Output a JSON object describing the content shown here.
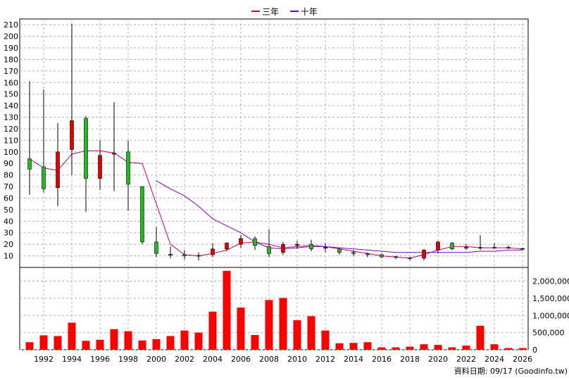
{
  "legend": {
    "ma3_label": "三年",
    "ma10_label": "十年",
    "ma3_color": "#c0006a",
    "ma10_color": "#8000c0"
  },
  "footer": {
    "source_label": "資料日期: 09/17  (Goodinfo.tw)"
  },
  "colors": {
    "up": "#e00000",
    "down": "#22bb22",
    "volume": "#ff0000",
    "grid": "#b0b0b0"
  },
  "chart_data": [
    {
      "type": "candlestick",
      "title": "",
      "xlabel": "",
      "ylabel": "",
      "ylim": [
        0,
        215
      ],
      "xlim": [
        1990.3,
        2026.4
      ],
      "grid": true,
      "legend_position": "top-center",
      "x_ticks": [
        1992,
        1994,
        1996,
        1998,
        2000,
        2002,
        2004,
        2006,
        2008,
        2010,
        2012,
        2014,
        2016,
        2018,
        2020,
        2022,
        2024,
        2026
      ],
      "y_ticks": [
        10,
        20,
        30,
        40,
        50,
        60,
        70,
        80,
        90,
        100,
        110,
        120,
        130,
        140,
        150,
        160,
        170,
        180,
        190,
        200,
        210
      ],
      "candles": [
        {
          "year": 1991,
          "open": 94,
          "close": 85,
          "high": 161,
          "low": 63
        },
        {
          "year": 1992,
          "open": 87,
          "close": 68,
          "high": 154,
          "low": 65
        },
        {
          "year": 1993,
          "open": 69,
          "close": 100,
          "high": 125,
          "low": 53
        },
        {
          "year": 1994,
          "open": 102,
          "close": 127,
          "high": 211,
          "low": 80
        },
        {
          "year": 1995,
          "open": 129,
          "close": 77,
          "high": 131,
          "low": 48
        },
        {
          "year": 1996,
          "open": 77,
          "close": 97,
          "high": 110,
          "low": 67
        },
        {
          "year": 1997,
          "open": 98,
          "close": 99,
          "high": 143,
          "low": 66
        },
        {
          "year": 1998,
          "open": 100,
          "close": 72,
          "high": 110,
          "low": 49
        },
        {
          "year": 1999,
          "open": 70,
          "close": 22,
          "high": 70,
          "low": 20
        },
        {
          "year": 2000,
          "open": 22,
          "close": 12,
          "high": 35,
          "low": 9
        },
        {
          "year": 2001,
          "open": 11,
          "close": 11,
          "high": 18,
          "low": 8
        },
        {
          "year": 2002,
          "open": 11,
          "close": 10,
          "high": 15,
          "low": 7
        },
        {
          "year": 2003,
          "open": 10,
          "close": 10,
          "high": 13,
          "low": 6
        },
        {
          "year": 2004,
          "open": 11,
          "close": 16,
          "high": 21,
          "low": 9
        },
        {
          "year": 2005,
          "open": 16,
          "close": 21,
          "high": 22,
          "low": 14
        },
        {
          "year": 2006,
          "open": 20,
          "close": 25,
          "high": 28,
          "low": 17
        },
        {
          "year": 2007,
          "open": 25,
          "close": 19,
          "high": 27,
          "low": 15
        },
        {
          "year": 2008,
          "open": 18,
          "close": 12,
          "high": 33,
          "low": 9
        },
        {
          "year": 2009,
          "open": 13,
          "close": 20,
          "high": 22,
          "low": 11
        },
        {
          "year": 2010,
          "open": 19,
          "close": 20,
          "high": 23,
          "low": 16
        },
        {
          "year": 2011,
          "open": 20,
          "close": 16,
          "high": 24,
          "low": 14
        },
        {
          "year": 2012,
          "open": 17,
          "close": 17,
          "high": 21,
          "low": 13
        },
        {
          "year": 2013,
          "open": 16,
          "close": 13,
          "high": 17,
          "low": 11
        },
        {
          "year": 2014,
          "open": 13,
          "close": 12,
          "high": 15,
          "low": 10
        },
        {
          "year": 2015,
          "open": 12,
          "close": 11,
          "high": 13,
          "low": 9
        },
        {
          "year": 2016,
          "open": 11,
          "close": 9,
          "high": 12,
          "low": 8
        },
        {
          "year": 2017,
          "open": 9,
          "close": 9,
          "high": 10,
          "low": 7
        },
        {
          "year": 2018,
          "open": 8,
          "close": 8,
          "high": 9,
          "low": 6
        },
        {
          "year": 2019,
          "open": 8,
          "close": 15,
          "high": 16,
          "low": 6
        },
        {
          "year": 2020,
          "open": 15,
          "close": 22,
          "high": 23,
          "low": 12
        },
        {
          "year": 2021,
          "open": 21,
          "close": 16,
          "high": 22,
          "low": 15
        },
        {
          "year": 2022,
          "open": 17,
          "close": 17,
          "high": 20,
          "low": 15
        },
        {
          "year": 2023,
          "open": 17,
          "close": 17,
          "high": 28,
          "low": 15
        },
        {
          "year": 2024,
          "open": 17,
          "close": 17,
          "high": 21,
          "low": 16
        },
        {
          "year": 2025,
          "open": 17,
          "close": 17,
          "high": 19,
          "low": 16
        },
        {
          "year": 2026,
          "open": 16,
          "close": 16,
          "high": 17,
          "low": 15
        }
      ],
      "series": [
        {
          "name": "三年",
          "x": [
            1991,
            1992,
            1993,
            1994,
            1995,
            1996,
            1997,
            1998,
            1999,
            2000,
            2001,
            2002,
            2003,
            2004,
            2005,
            2006,
            2007,
            2008,
            2009,
            2010,
            2011,
            2012,
            2013,
            2014,
            2015,
            2016,
            2017,
            2018,
            2019,
            2020,
            2021,
            2022,
            2023,
            2024,
            2025,
            2026
          ],
          "values": [
            94,
            86,
            84,
            98,
            101,
            101,
            99,
            91,
            90,
            55,
            20,
            11,
            10,
            12,
            15,
            21,
            22,
            20,
            17,
            18,
            19,
            18,
            16,
            14,
            12,
            10,
            9,
            8,
            11,
            15,
            18,
            18,
            17,
            17,
            17,
            16
          ]
        },
        {
          "name": "十年",
          "x": [
            2000,
            2001,
            2002,
            2003,
            2004,
            2005,
            2006,
            2007,
            2008,
            2009,
            2010,
            2011,
            2012,
            2013,
            2014,
            2015,
            2016,
            2017,
            2018,
            2019,
            2020,
            2021,
            2022,
            2023,
            2024,
            2025,
            2026
          ],
          "values": [
            75,
            68,
            62,
            53,
            42,
            36,
            30,
            22,
            17,
            16,
            17,
            18,
            18,
            17,
            16,
            15,
            14,
            13,
            13,
            13,
            13,
            13,
            13,
            14,
            14,
            15,
            15
          ]
        }
      ]
    },
    {
      "type": "bar",
      "title": "",
      "xlabel": "",
      "ylabel": "",
      "ylim": [
        0,
        2400000
      ],
      "y_ticks": [
        0,
        500000,
        1000000,
        1500000,
        2000000
      ],
      "y_tick_labels": [
        "0",
        "500,000",
        "1,000,000",
        "1,500,000",
        "2,000,000"
      ],
      "categories": [
        1991,
        1992,
        1993,
        1994,
        1995,
        1996,
        1997,
        1998,
        1999,
        2000,
        2001,
        2002,
        2003,
        2004,
        2005,
        2006,
        2007,
        2008,
        2009,
        2010,
        2011,
        2012,
        2013,
        2014,
        2015,
        2016,
        2017,
        2018,
        2019,
        2020,
        2021,
        2022,
        2023,
        2024,
        2025,
        2026
      ],
      "values": [
        220000,
        420000,
        400000,
        790000,
        260000,
        290000,
        600000,
        540000,
        270000,
        310000,
        400000,
        560000,
        500000,
        1110000,
        2300000,
        1230000,
        430000,
        1450000,
        1510000,
        860000,
        980000,
        560000,
        190000,
        200000,
        220000,
        70000,
        70000,
        90000,
        160000,
        140000,
        70000,
        120000,
        700000,
        160000,
        50000,
        50000
      ]
    }
  ]
}
